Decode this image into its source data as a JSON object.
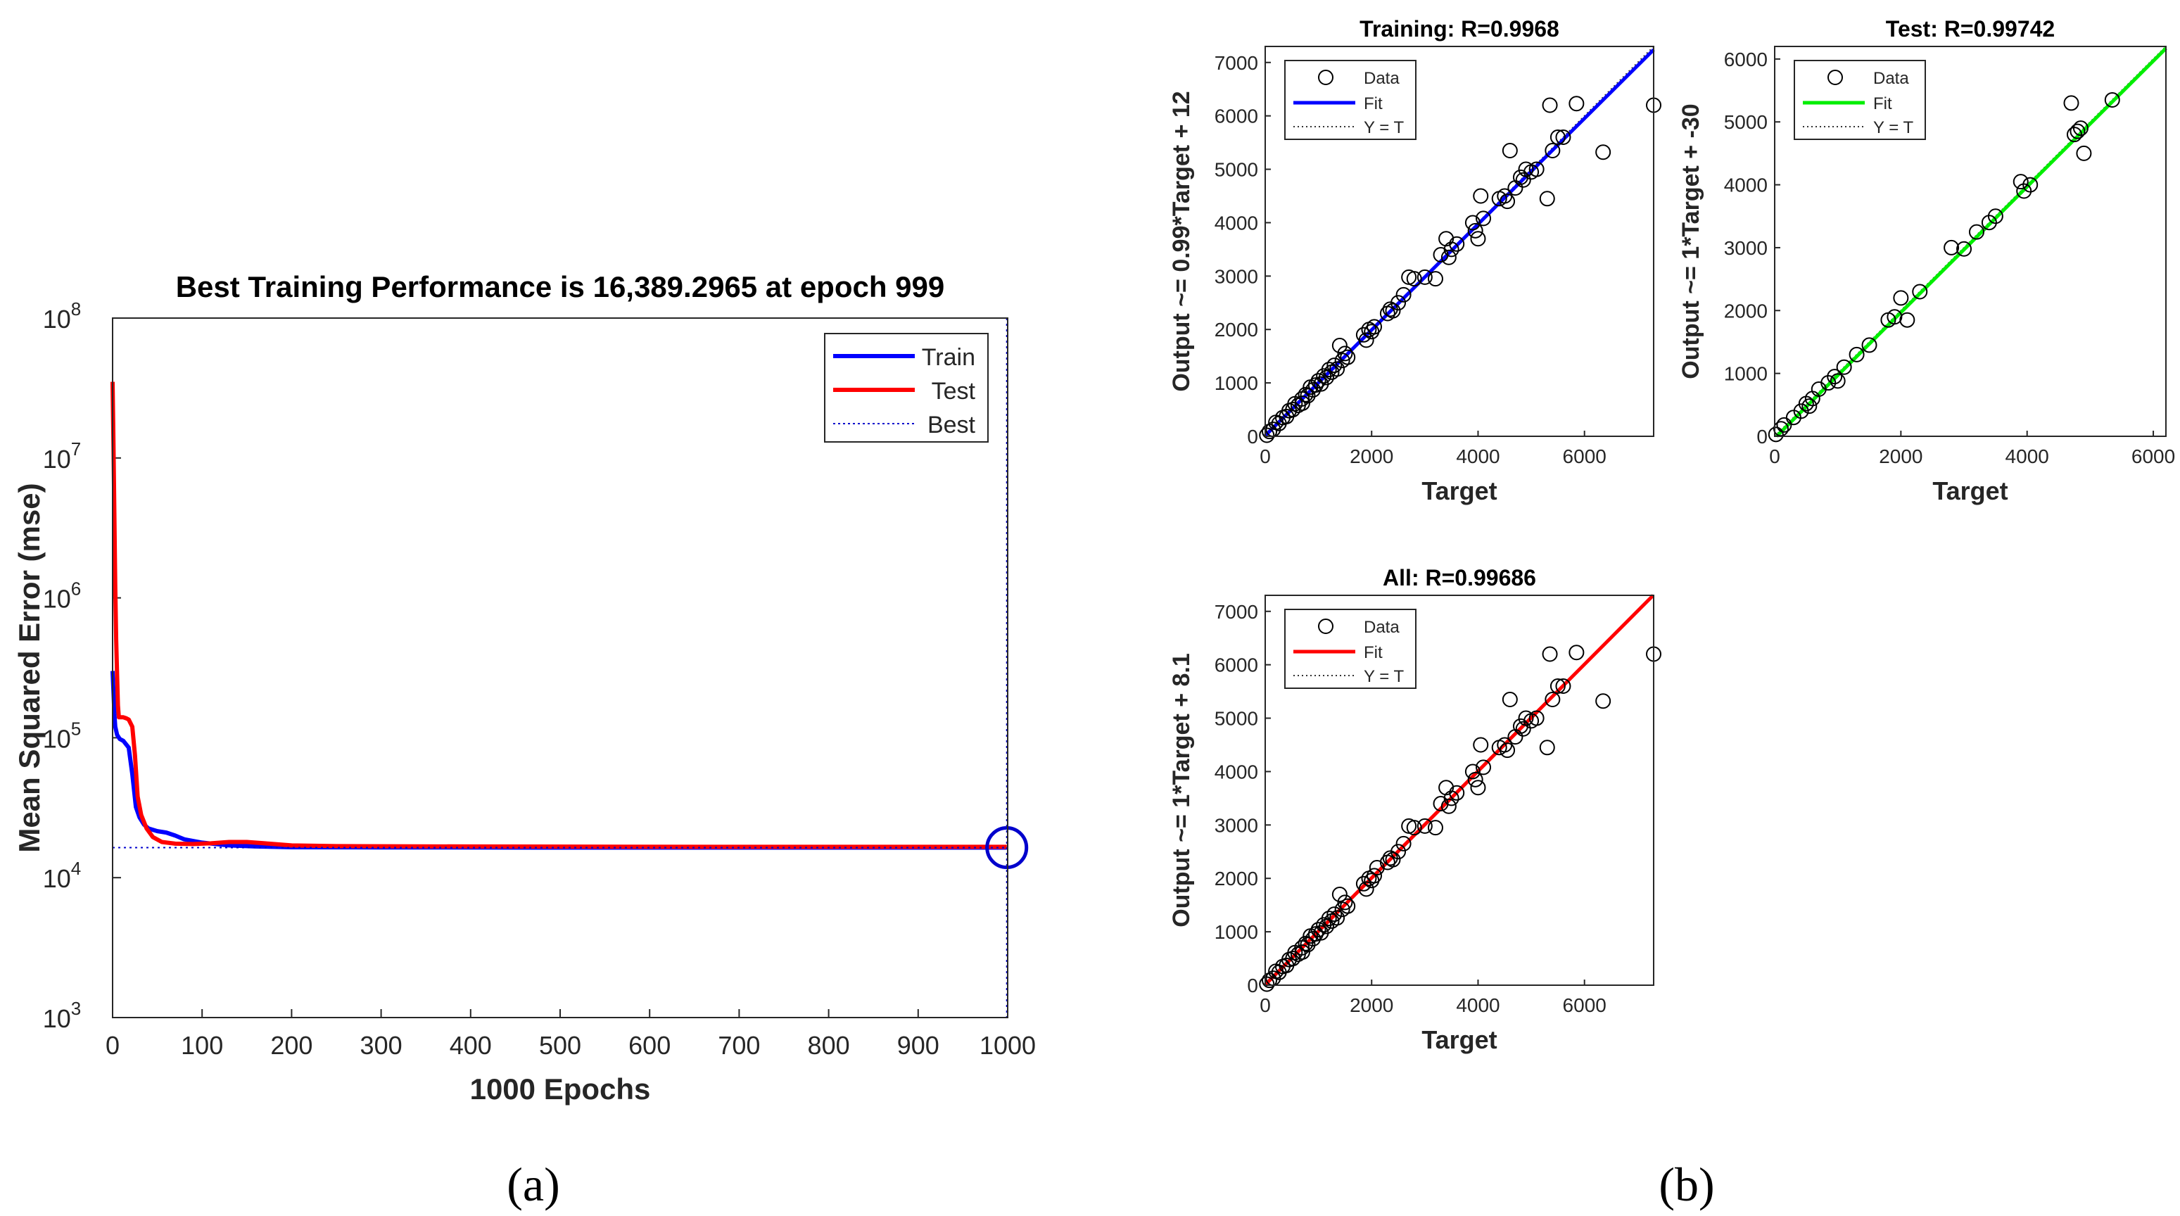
{
  "panels": {
    "a": {
      "caption": "(a)",
      "chart_data": {
        "type": "line",
        "title": "Best Training Performance is 16,389.2965 at epoch 999",
        "xlabel": "1000 Epochs",
        "ylabel": "Mean Squared Error  (mse)",
        "yscale": "log",
        "xlim": [
          0,
          1000
        ],
        "ylim": [
          1000,
          100000000
        ],
        "xticks": [
          0,
          100,
          200,
          300,
          400,
          500,
          600,
          700,
          800,
          900,
          1000
        ],
        "yticks": [
          {
            "value": 1000,
            "base": "10",
            "exp": "3"
          },
          {
            "value": 10000,
            "base": "10",
            "exp": "4"
          },
          {
            "value": 100000,
            "base": "10",
            "exp": "5"
          },
          {
            "value": 1000000,
            "base": "10",
            "exp": "6"
          },
          {
            "value": 10000000,
            "base": "10",
            "exp": "7"
          },
          {
            "value": 100000000,
            "base": "10",
            "exp": "8"
          }
        ],
        "series": [
          {
            "name": "Train",
            "color": "#0000ff",
            "x": [
              0,
              1,
              2,
              3,
              5,
              8,
              12,
              18,
              22,
              26,
              30,
              35,
              40,
              50,
              60,
              70,
              80,
              100,
              130,
              160,
              200,
              300,
              500,
              700,
              999
            ],
            "y": [
              300000,
              210000,
              150000,
              120000,
              105000,
              98000,
              95000,
              85000,
              55000,
              32000,
              27000,
              24000,
              22500,
              21500,
              21000,
              20000,
              18800,
              17800,
              17000,
              16700,
              16500,
              16450,
              16400,
              16390,
              16389
            ]
          },
          {
            "name": "Test",
            "color": "#ff0000",
            "x": [
              0,
              1,
              2,
              3,
              4,
              5,
              6,
              7,
              8,
              10,
              12,
              15,
              18,
              22,
              25,
              28,
              32,
              38,
              45,
              55,
              70,
              90,
              110,
              130,
              150,
              170,
              200,
              250,
              400,
              700,
              999
            ],
            "y": [
              35000000,
              12000000,
              4000000,
              1200000,
              500000,
              280000,
              170000,
              140000,
              140000,
              140000,
              140000,
              138000,
              135000,
              120000,
              75000,
              38000,
              28000,
              22500,
              19500,
              18000,
              17500,
              17400,
              17600,
              18000,
              18000,
              17600,
              17000,
              16800,
              16700,
              16600,
              16600
            ]
          }
        ],
        "best": {
          "name": "Best",
          "epoch": 999,
          "value": 16389.2965,
          "color": "#0000cc"
        },
        "legend": {
          "position": "top-right",
          "entries": [
            "Train",
            "Test",
            "Best"
          ]
        }
      }
    },
    "b": {
      "caption": "(b)",
      "chart_data": [
        {
          "type": "scatter",
          "title": "Training: R=0.9968",
          "xlabel": "Target",
          "ylabel": "Output ~= 0.99*Target + 12",
          "xlim": [
            0,
            7300
          ],
          "ylim": [
            0,
            7300
          ],
          "xticks": [
            0,
            2000,
            4000,
            6000
          ],
          "yticks": [
            0,
            1000,
            2000,
            3000,
            4000,
            5000,
            6000,
            7000
          ],
          "fit": {
            "slope": 0.99,
            "intercept": 12,
            "color": "#0000ff"
          },
          "legend": {
            "position": "top-left",
            "entries": [
              "Data",
              "Fit",
              "Y = T"
            ]
          },
          "points": [
            [
              30,
              20
            ],
            [
              80,
              90
            ],
            [
              150,
              130
            ],
            [
              200,
              260
            ],
            [
              260,
              240
            ],
            [
              330,
              350
            ],
            [
              400,
              370
            ],
            [
              450,
              480
            ],
            [
              520,
              500
            ],
            [
              560,
              610
            ],
            [
              620,
              580
            ],
            [
              690,
              700
            ],
            [
              700,
              620
            ],
            [
              760,
              780
            ],
            [
              800,
              760
            ],
            [
              850,
              920
            ],
            [
              900,
              870
            ],
            [
              950,
              960
            ],
            [
              1000,
              1040
            ],
            [
              1050,
              980
            ],
            [
              1100,
              1130
            ],
            [
              1150,
              1100
            ],
            [
              1200,
              1250
            ],
            [
              1250,
              1200
            ],
            [
              1300,
              1330
            ],
            [
              1350,
              1260
            ],
            [
              1400,
              1700
            ],
            [
              1450,
              1420
            ],
            [
              1500,
              1550
            ],
            [
              1550,
              1480
            ],
            [
              1850,
              1900
            ],
            [
              1900,
              1800
            ],
            [
              1950,
              2000
            ],
            [
              2000,
              1960
            ],
            [
              2050,
              2050
            ],
            [
              2300,
              2300
            ],
            [
              2350,
              2380
            ],
            [
              2400,
              2350
            ],
            [
              2500,
              2500
            ],
            [
              2600,
              2650
            ],
            [
              2700,
              2980
            ],
            [
              2800,
              2950
            ],
            [
              3000,
              2980
            ],
            [
              3200,
              2950
            ],
            [
              3300,
              3400
            ],
            [
              3400,
              3700
            ],
            [
              3450,
              3350
            ],
            [
              3500,
              3500
            ],
            [
              3600,
              3600
            ],
            [
              3900,
              4000
            ],
            [
              3950,
              3850
            ],
            [
              4000,
              3700
            ],
            [
              4050,
              4500
            ],
            [
              4100,
              4080
            ],
            [
              4400,
              4450
            ],
            [
              4500,
              4500
            ],
            [
              4550,
              4400
            ],
            [
              4600,
              5350
            ],
            [
              4700,
              4650
            ],
            [
              4800,
              4850
            ],
            [
              4850,
              4800
            ],
            [
              4900,
              5000
            ],
            [
              5000,
              4950
            ],
            [
              5100,
              5000
            ],
            [
              5300,
              4450
            ],
            [
              5350,
              6200
            ],
            [
              5400,
              5350
            ],
            [
              5500,
              5600
            ],
            [
              5600,
              5600
            ],
            [
              5850,
              6230
            ],
            [
              6350,
              5320
            ],
            [
              7300,
              6200
            ]
          ]
        },
        {
          "type": "scatter",
          "title": "Test: R=0.99742",
          "xlabel": "Target",
          "ylabel": "Output ~= 1*Target + -30",
          "xlim": [
            0,
            6200
          ],
          "ylim": [
            0,
            6200
          ],
          "xticks": [
            0,
            2000,
            4000,
            6000
          ],
          "yticks": [
            0,
            1000,
            2000,
            3000,
            4000,
            5000,
            6000
          ],
          "fit": {
            "slope": 1.0,
            "intercept": -30,
            "color": "#00ee00"
          },
          "legend": {
            "position": "top-left",
            "entries": [
              "Data",
              "Fit",
              "Y = T"
            ]
          },
          "points": [
            [
              20,
              30
            ],
            [
              100,
              120
            ],
            [
              150,
              180
            ],
            [
              300,
              300
            ],
            [
              420,
              400
            ],
            [
              500,
              520
            ],
            [
              550,
              480
            ],
            [
              600,
              600
            ],
            [
              700,
              750
            ],
            [
              850,
              850
            ],
            [
              950,
              950
            ],
            [
              1000,
              880
            ],
            [
              1100,
              1100
            ],
            [
              1300,
              1300
            ],
            [
              1500,
              1450
            ],
            [
              1800,
              1850
            ],
            [
              1900,
              1900
            ],
            [
              2000,
              2200
            ],
            [
              2100,
              1850
            ],
            [
              2300,
              2300
            ],
            [
              2800,
              3000
            ],
            [
              3000,
              2980
            ],
            [
              3200,
              3250
            ],
            [
              3400,
              3400
            ],
            [
              3500,
              3500
            ],
            [
              3900,
              4050
            ],
            [
              3950,
              3900
            ],
            [
              4050,
              4000
            ],
            [
              4700,
              5300
            ],
            [
              4750,
              4800
            ],
            [
              4800,
              4850
            ],
            [
              4850,
              4900
            ],
            [
              4900,
              4500
            ],
            [
              5350,
              5350
            ]
          ]
        },
        {
          "type": "scatter",
          "title": "All: R=0.99686",
          "xlabel": "Target",
          "ylabel": "Output ~= 1*Target + 8.1",
          "xlim": [
            0,
            7300
          ],
          "ylim": [
            0,
            7300
          ],
          "xticks": [
            0,
            2000,
            4000,
            6000
          ],
          "yticks": [
            0,
            1000,
            2000,
            3000,
            4000,
            5000,
            6000,
            7000
          ],
          "fit": {
            "slope": 1.0,
            "intercept": 8.1,
            "color": "#ff0000"
          },
          "legend": {
            "position": "top-left",
            "entries": [
              "Data",
              "Fit",
              "Y = T"
            ]
          },
          "points": [
            [
              30,
              20
            ],
            [
              80,
              90
            ],
            [
              150,
              130
            ],
            [
              200,
              260
            ],
            [
              260,
              240
            ],
            [
              330,
              350
            ],
            [
              400,
              370
            ],
            [
              450,
              480
            ],
            [
              520,
              500
            ],
            [
              560,
              610
            ],
            [
              620,
              580
            ],
            [
              690,
              700
            ],
            [
              700,
              620
            ],
            [
              760,
              780
            ],
            [
              800,
              760
            ],
            [
              850,
              920
            ],
            [
              900,
              870
            ],
            [
              950,
              960
            ],
            [
              1000,
              1040
            ],
            [
              1050,
              980
            ],
            [
              1100,
              1130
            ],
            [
              1150,
              1100
            ],
            [
              1200,
              1250
            ],
            [
              1250,
              1200
            ],
            [
              1300,
              1330
            ],
            [
              1350,
              1260
            ],
            [
              1400,
              1700
            ],
            [
              1450,
              1420
            ],
            [
              1500,
              1550
            ],
            [
              1550,
              1480
            ],
            [
              1850,
              1900
            ],
            [
              1900,
              1800
            ],
            [
              1950,
              2000
            ],
            [
              2000,
              1960
            ],
            [
              2050,
              2050
            ],
            [
              2100,
              2200
            ],
            [
              2300,
              2300
            ],
            [
              2350,
              2380
            ],
            [
              2400,
              2350
            ],
            [
              2500,
              2500
            ],
            [
              2600,
              2650
            ],
            [
              2700,
              2980
            ],
            [
              2800,
              2950
            ],
            [
              3000,
              2980
            ],
            [
              3200,
              2950
            ],
            [
              3300,
              3400
            ],
            [
              3400,
              3700
            ],
            [
              3450,
              3350
            ],
            [
              3500,
              3500
            ],
            [
              3600,
              3600
            ],
            [
              3900,
              4000
            ],
            [
              3950,
              3850
            ],
            [
              4000,
              3700
            ],
            [
              4050,
              4500
            ],
            [
              4100,
              4080
            ],
            [
              4400,
              4450
            ],
            [
              4500,
              4500
            ],
            [
              4550,
              4400
            ],
            [
              4600,
              5350
            ],
            [
              4700,
              4650
            ],
            [
              4800,
              4850
            ],
            [
              4850,
              4800
            ],
            [
              4900,
              5000
            ],
            [
              5000,
              4950
            ],
            [
              5100,
              5000
            ],
            [
              5300,
              4450
            ],
            [
              5350,
              6200
            ],
            [
              5400,
              5350
            ],
            [
              5500,
              5600
            ],
            [
              5600,
              5600
            ],
            [
              5850,
              6230
            ],
            [
              6350,
              5320
            ],
            [
              7300,
              6200
            ]
          ]
        }
      ]
    }
  }
}
